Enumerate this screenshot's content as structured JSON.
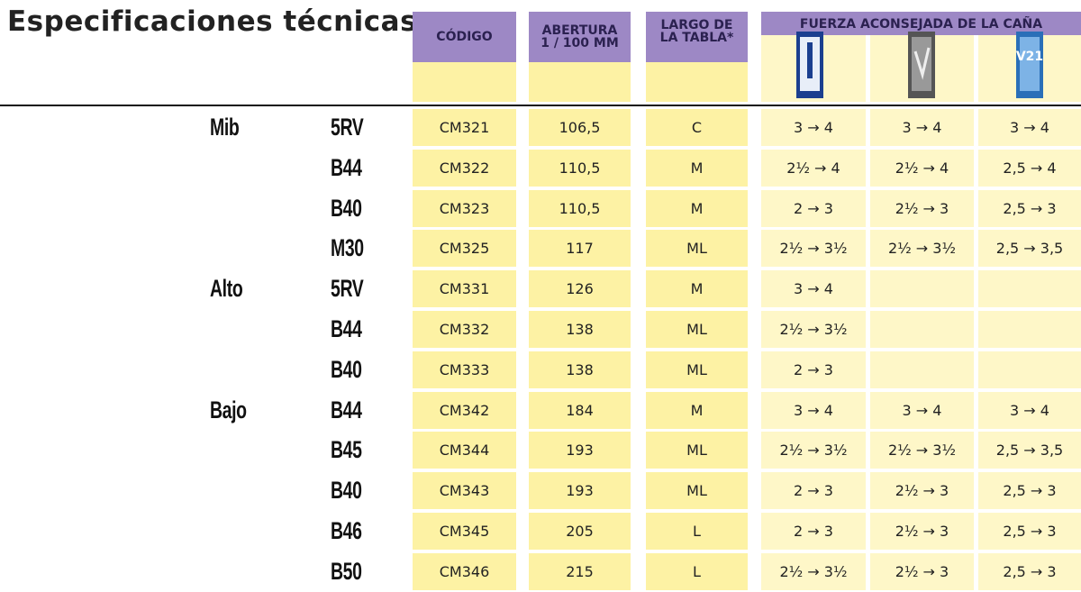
{
  "title": "Especificaciones técnicas",
  "header": {
    "code": "CÓDIGO",
    "opening": [
      "ABERTURA",
      "1 / 100 MM"
    ],
    "length": [
      "LARGO DE",
      "LA TABLA*"
    ],
    "strength": "FUERZA ACONSEJADA DE LA CAÑA"
  },
  "groups": [
    {
      "name": "Mib",
      "rows": [
        {
          "model": "5RV",
          "code": "CM321",
          "opening": "106,5",
          "length": "C",
          "strengths": [
            "3 → 4",
            "3 → 4",
            "3 → 4"
          ]
        },
        {
          "model": "B44",
          "code": "CM322",
          "opening": "110,5",
          "length": "M",
          "strengths": [
            "2½ → 4",
            "2½ → 4",
            "2,5 → 4"
          ]
        },
        {
          "model": "B40",
          "code": "CM323",
          "opening": "110,5",
          "length": "M",
          "strengths": [
            "2 → 3",
            "2½ → 3",
            "2,5 → 3"
          ]
        },
        {
          "model": "M30",
          "code": "CM325",
          "opening": "117",
          "length": "ML",
          "strengths": [
            "2½ → 3½",
            "2½ → 3½",
            "2,5 → 3,5"
          ]
        }
      ]
    },
    {
      "name": "Alto",
      "rows": [
        {
          "model": "5RV",
          "code": "CM331",
          "opening": "126",
          "length": "M",
          "strengths": [
            "3 → 4",
            null,
            null
          ]
        },
        {
          "model": "B44",
          "code": "CM332",
          "opening": "138",
          "length": "ML",
          "strengths": [
            "2½ → 3½",
            null,
            null
          ]
        },
        {
          "model": "B40",
          "code": "CM333",
          "opening": "138",
          "length": "ML",
          "strengths": [
            "2 → 3",
            null,
            null
          ]
        }
      ]
    },
    {
      "name": "Bajo",
      "rows": [
        {
          "model": "B44",
          "code": "CM342",
          "opening": "184",
          "length": "M",
          "strengths": [
            "3 → 4",
            "3 → 4",
            "3 → 4"
          ]
        },
        {
          "model": "B45",
          "code": "CM344",
          "opening": "193",
          "length": "ML",
          "strengths": [
            "2½ → 3½",
            "2½ → 3½",
            "2,5 → 3,5"
          ]
        },
        {
          "model": "B40",
          "code": "CM343",
          "opening": "193",
          "length": "ML",
          "strengths": [
            "2 → 3",
            "2½ → 3",
            "2,5 → 3"
          ]
        },
        {
          "model": "B46",
          "code": "CM345",
          "opening": "205",
          "length": "L",
          "strengths": [
            "2 → 3",
            "2½ → 3",
            "2,5 → 3"
          ]
        },
        {
          "model": "B50",
          "code": "CM346",
          "opening": "215",
          "length": "L",
          "strengths": [
            "2½ → 3½",
            "2½ → 3",
            "2,5 → 3"
          ]
        }
      ]
    }
  ]
}
